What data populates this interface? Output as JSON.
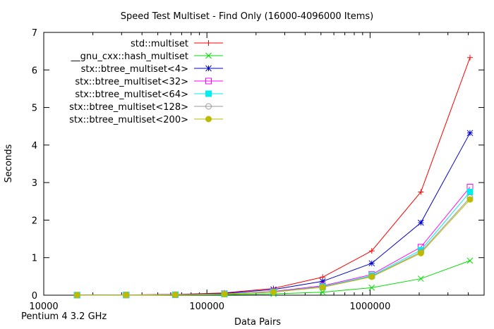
{
  "chart_data": {
    "type": "line",
    "title": "Speed Test Multiset - Find Only (16000-4096000 Items)",
    "xlabel": "Data Pairs",
    "ylabel": "Seconds",
    "footnote": "Pentium 4 3.2 GHz",
    "xscale": "log",
    "xlim": [
      10000,
      5000000
    ],
    "ylim": [
      0,
      7
    ],
    "x_ticks": [
      10000,
      100000,
      1000000
    ],
    "x_tick_labels": [
      "10000",
      "100000",
      "1000000"
    ],
    "y_ticks": [
      0,
      1,
      2,
      3,
      4,
      5,
      6,
      7
    ],
    "y_tick_labels": [
      "0",
      "1",
      "2",
      "3",
      "4",
      "5",
      "6",
      "7"
    ],
    "grid": false,
    "legend_position": "top-left",
    "x": [
      16000,
      32000,
      64000,
      128000,
      256000,
      512000,
      1024000,
      2048000,
      4096000
    ],
    "series": [
      {
        "name": "std::multiset",
        "color": "#ff0000",
        "marker": "plus",
        "values": [
          0.003,
          0.008,
          0.02,
          0.06,
          0.18,
          0.48,
          1.18,
          2.75,
          6.33
        ]
      },
      {
        "name": "__gnu_cxx::hash_multiset",
        "color": "#00dd00",
        "marker": "cross",
        "values": [
          0.001,
          0.003,
          0.006,
          0.015,
          0.035,
          0.08,
          0.2,
          0.44,
          0.92
        ]
      },
      {
        "name": "stx::btree_multiset<4>",
        "color": "#0000cc",
        "marker": "star",
        "values": [
          0.002,
          0.006,
          0.015,
          0.05,
          0.15,
          0.37,
          0.85,
          1.93,
          4.32
        ]
      },
      {
        "name": "stx::btree_multiset<32>",
        "color": "#ff00ff",
        "marker": "open-square",
        "values": [
          0.002,
          0.005,
          0.012,
          0.035,
          0.1,
          0.25,
          0.55,
          1.28,
          2.88
        ]
      },
      {
        "name": "stx::btree_multiset<64>",
        "color": "#00eeee",
        "marker": "filled-square",
        "values": [
          0.002,
          0.005,
          0.011,
          0.032,
          0.09,
          0.23,
          0.52,
          1.2,
          2.75
        ]
      },
      {
        "name": "stx::btree_multiset<128>",
        "color": "#999999",
        "marker": "open-circle",
        "values": [
          0.002,
          0.004,
          0.01,
          0.03,
          0.085,
          0.22,
          0.5,
          1.15,
          2.6
        ]
      },
      {
        "name": "stx::btree_multiset<200>",
        "color": "#bbbb00",
        "marker": "filled-circle",
        "values": [
          0.002,
          0.004,
          0.01,
          0.03,
          0.08,
          0.21,
          0.49,
          1.12,
          2.55
        ]
      }
    ]
  }
}
